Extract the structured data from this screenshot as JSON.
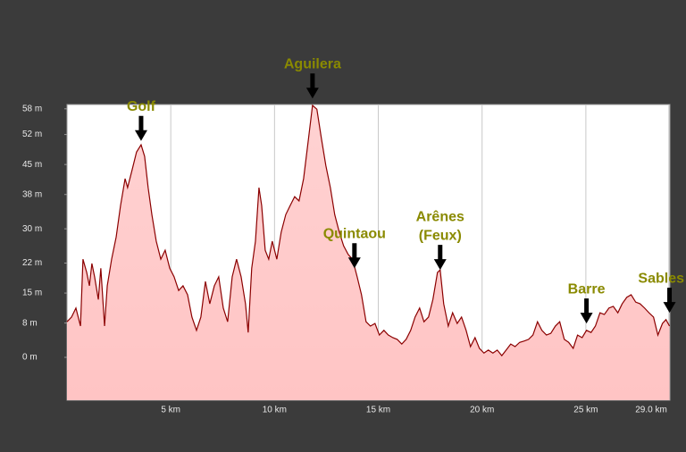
{
  "chart_data": {
    "type": "area",
    "x": [
      0,
      0.22,
      0.43,
      0.65,
      0.77,
      0.95,
      1.08,
      1.2,
      1.33,
      1.51,
      1.63,
      1.81,
      1.94,
      2.15,
      2.37,
      2.58,
      2.8,
      2.92,
      3.14,
      3.35,
      3.57,
      3.74,
      3.91,
      4.09,
      4.3,
      4.52,
      4.73,
      4.95,
      5.16,
      5.38,
      5.59,
      5.81,
      6.02,
      6.24,
      6.45,
      6.67,
      6.88,
      7.1,
      7.31,
      7.53,
      7.74,
      7.96,
      8.17,
      8.39,
      8.6,
      8.73,
      8.9,
      9.08,
      9.25,
      9.38,
      9.55,
      9.72,
      9.89,
      10.11,
      10.32,
      10.54,
      10.75,
      10.97,
      11.18,
      11.4,
      11.61,
      11.83,
      12.04,
      12.26,
      12.47,
      12.69,
      12.9,
      13.12,
      13.33,
      13.55,
      13.76,
      13.98,
      14.19,
      14.41,
      14.62,
      14.84,
      15.05,
      15.27,
      15.48,
      15.7,
      15.91,
      16.13,
      16.34,
      16.56,
      16.77,
      16.99,
      17.2,
      17.42,
      17.63,
      17.85,
      17.98,
      18.15,
      18.37,
      18.58,
      18.8,
      19.01,
      19.23,
      19.44,
      19.66,
      19.87,
      20.09,
      20.3,
      20.52,
      20.73,
      20.95,
      21.16,
      21.38,
      21.59,
      21.81,
      22.02,
      22.24,
      22.45,
      22.67,
      22.88,
      23.1,
      23.31,
      23.53,
      23.74,
      23.96,
      24.17,
      24.39,
      24.6,
      24.82,
      25.03,
      25.25,
      25.46,
      25.68,
      25.89,
      26.11,
      26.32,
      26.54,
      26.75,
      26.97,
      27.18,
      27.4,
      27.61,
      27.83,
      28.04,
      28.26,
      28.47,
      28.69,
      28.86,
      29.03
    ],
    "values": [
      8.3,
      9.4,
      11.5,
      7.3,
      22.9,
      19.8,
      16.7,
      21.9,
      18.8,
      13.5,
      20.8,
      7.3,
      16.7,
      22.9,
      28.1,
      35.4,
      41.7,
      39.6,
      43.8,
      47.9,
      49.6,
      46.9,
      39.6,
      33.3,
      27.1,
      22.9,
      25,
      20.8,
      18.8,
      15.6,
      16.7,
      14.6,
      9.4,
      6.3,
      9.4,
      17.7,
      12.5,
      16.7,
      18.8,
      11.5,
      8.3,
      18.8,
      22.9,
      18.8,
      12.5,
      5.8,
      20.8,
      27.1,
      39.6,
      35.4,
      25,
      22.9,
      27.1,
      22.9,
      29.2,
      33.3,
      35.4,
      37.5,
      36.5,
      41.7,
      50,
      58.8,
      57.9,
      51,
      44.8,
      39.6,
      33.3,
      29.2,
      26,
      24,
      22.9,
      18.8,
      14.6,
      8.3,
      7.3,
      7.9,
      5.2,
      6.3,
      5.2,
      4.6,
      4.2,
      3.1,
      4.2,
      6.3,
      9.4,
      11.5,
      8.3,
      9.4,
      13.5,
      19.8,
      20.4,
      12.5,
      7.3,
      10.4,
      7.9,
      9.4,
      6.3,
      2.5,
      4.6,
      2.1,
      1,
      1.7,
      1,
      1.7,
      0.4,
      1.7,
      3.1,
      2.5,
      3.5,
      3.8,
      4.2,
      5.2,
      8.3,
      6.3,
      5.2,
      5.6,
      7.3,
      8.3,
      4.2,
      3.5,
      2.1,
      5.2,
      4.6,
      6.3,
      5.8,
      7.3,
      10.4,
      10,
      11.5,
      11.9,
      10.4,
      12.5,
      14,
      14.6,
      12.9,
      12.5,
      11.5,
      10.4,
      9.4,
      5.2,
      7.9,
      8.8,
      7.3
    ],
    "line_color": "#8b0000",
    "fill_color": "#ffc4c4",
    "xlim": [
      0,
      29.05
    ],
    "ylim": [
      -10,
      59
    ],
    "xticks": [
      {
        "value": 5,
        "label": "5 km"
      },
      {
        "value": 10,
        "label": "10 km"
      },
      {
        "value": 15,
        "label": "15 km"
      },
      {
        "value": 20,
        "label": "20 km"
      },
      {
        "value": 25,
        "label": "25 km"
      },
      {
        "value": 29.0,
        "label": "29.0 km"
      }
    ],
    "yticks": [
      {
        "value": 0,
        "label": "0 m"
      },
      {
        "value": 8,
        "label": "8 m"
      },
      {
        "value": 15,
        "label": "15 m"
      },
      {
        "value": 22,
        "label": "22 m"
      },
      {
        "value": 30,
        "label": "30 m"
      },
      {
        "value": 38,
        "label": "38 m"
      },
      {
        "value": 45,
        "label": "45 m"
      },
      {
        "value": 52,
        "label": "52 m"
      },
      {
        "value": 58,
        "label": "58 m"
      }
    ],
    "grid": true,
    "annotations": [
      {
        "text": [
          "Golf"
        ],
        "x": 3.57,
        "y": 50.5
      },
      {
        "text": [
          "Aguilera"
        ],
        "x": 11.83,
        "y": 60.4
      },
      {
        "text": [
          "Quintaou"
        ],
        "x": 13.85,
        "y": 20.8
      },
      {
        "text": [
          "Arênes",
          "(Feux)"
        ],
        "x": 17.98,
        "y": 20.4
      },
      {
        "text": [
          "Barre"
        ],
        "x": 25.03,
        "y": 7.9
      },
      {
        "text": [
          "Sables"
        ],
        "x": 29.03,
        "y": 10.4
      }
    ]
  }
}
